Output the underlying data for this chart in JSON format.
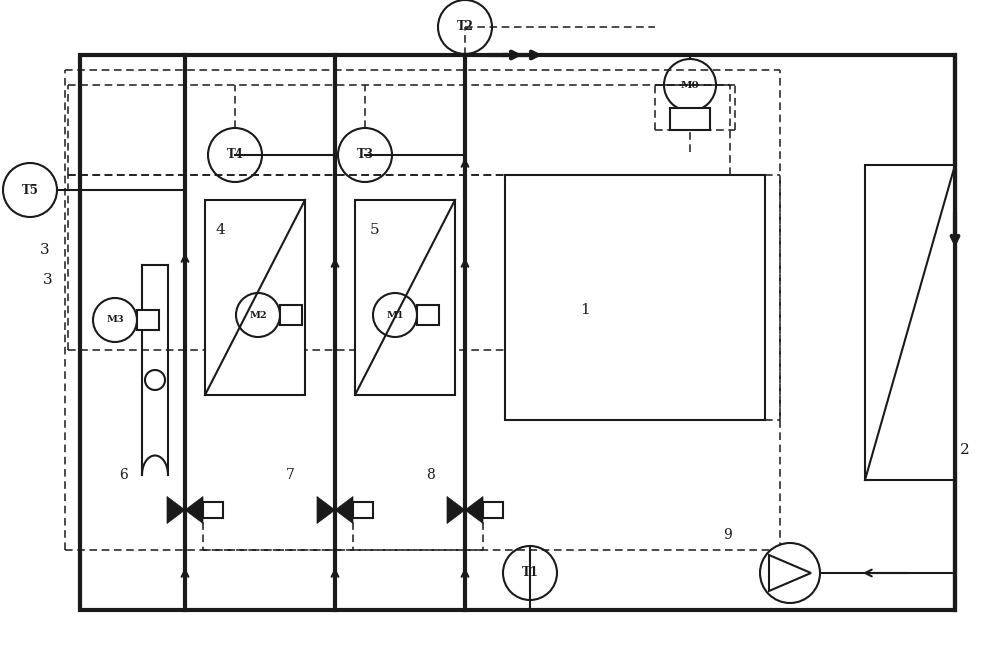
{
  "bg_color": "#ffffff",
  "line_color": "#1a1a1a",
  "thick_lw": 3.0,
  "thin_lw": 1.5,
  "dash_lw": 1.1,
  "figsize": [
    10.0,
    6.45
  ],
  "dpi": 100,
  "xlim": [
    0,
    10
  ],
  "ylim": [
    0,
    6.45
  ]
}
